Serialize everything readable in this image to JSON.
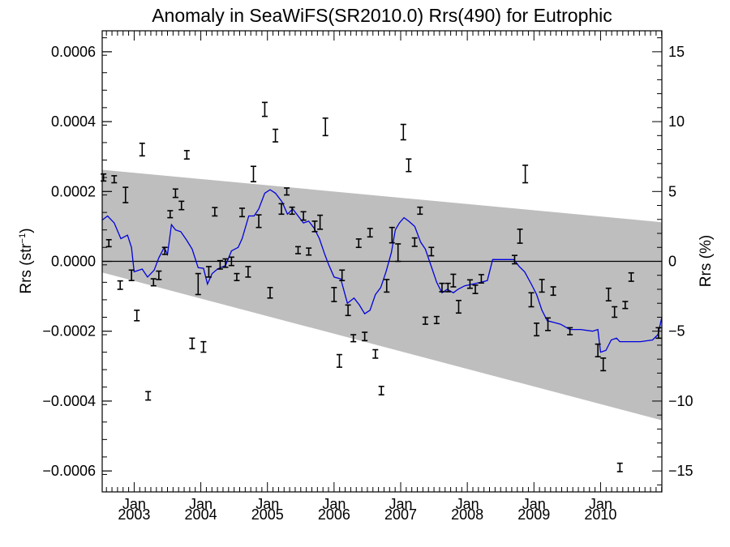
{
  "chart_data": {
    "type": "scatter",
    "title": "Anomaly in SeaWiFS(SR2010.0) Rrs(490) for Eutrophic",
    "ylabel_left": "Rrs (str",
    "ylabel_left_sup": "−1",
    "ylabel_left_close": ")",
    "ylabel_right": "Rrs (%)",
    "xlim": [
      2002.52,
      2010.92
    ],
    "ylim_left": [
      -0.00066,
      0.00066
    ],
    "ylim_right": [
      -16.5,
      16.5
    ],
    "yticks_left": [
      {
        "value": 0.0006,
        "label": "0.0006"
      },
      {
        "value": 0.0004,
        "label": "0.0004"
      },
      {
        "value": 0.0002,
        "label": "0.0002"
      },
      {
        "value": 0.0,
        "label": "0.0000"
      },
      {
        "value": -0.0002,
        "label": "−0.0002"
      },
      {
        "value": -0.0004,
        "label": "−0.0004"
      },
      {
        "value": -0.0006,
        "label": "−0.0006"
      }
    ],
    "yticks_right": [
      {
        "value": 15,
        "label": "15"
      },
      {
        "value": 10,
        "label": "10"
      },
      {
        "value": 5,
        "label": "5"
      },
      {
        "value": 0,
        "label": "0"
      },
      {
        "value": -5,
        "label": "−5"
      },
      {
        "value": -10,
        "label": "−10"
      },
      {
        "value": -15,
        "label": "−15"
      }
    ],
    "xticks": [
      {
        "value": 2003.0,
        "month": "Jan",
        "year": "2003"
      },
      {
        "value": 2004.0,
        "month": "Jan",
        "year": "2004"
      },
      {
        "value": 2005.0,
        "month": "Jan",
        "year": "2005"
      },
      {
        "value": 2006.0,
        "month": "Jan",
        "year": "2006"
      },
      {
        "value": 2007.0,
        "month": "Jan",
        "year": "2007"
      },
      {
        "value": 2008.0,
        "month": "Jan",
        "year": "2008"
      },
      {
        "value": 2009.0,
        "month": "Jan",
        "year": "2009"
      },
      {
        "value": 2010.0,
        "month": "Jan",
        "year": "2010"
      }
    ],
    "zero_line": 0,
    "uncertainty_band": {
      "color": "#bebebe",
      "upper": [
        [
          2002.52,
          0.000262
        ],
        [
          2010.92,
          0.000112
        ]
      ],
      "lower": [
        [
          2002.52,
          -3.2e-05
        ],
        [
          2010.92,
          -0.000455
        ]
      ]
    },
    "series": [
      {
        "type": "errorbar",
        "color": "#000000",
        "points": [
          {
            "x": 2002.54,
            "y": 0.00024,
            "err": 1e-05
          },
          {
            "x": 2002.62,
            "y": 5.2e-05,
            "err": 1e-05
          },
          {
            "x": 2002.7,
            "y": 0.000235,
            "err": 1e-05
          },
          {
            "x": 2002.79,
            "y": -6.8e-05,
            "err": 1.2e-05
          },
          {
            "x": 2002.87,
            "y": 0.00019,
            "err": 2.2e-05
          },
          {
            "x": 2002.96,
            "y": -4e-05,
            "err": 1.5e-05
          },
          {
            "x": 2003.04,
            "y": -0.000155,
            "err": 1.5e-05
          },
          {
            "x": 2003.12,
            "y": 0.00032,
            "err": 1.8e-05
          },
          {
            "x": 2003.21,
            "y": -0.000385,
            "err": 1.2e-05
          },
          {
            "x": 2003.29,
            "y": -6e-05,
            "err": 1e-05
          },
          {
            "x": 2003.37,
            "y": -4e-05,
            "err": 1.2e-05
          },
          {
            "x": 2003.46,
            "y": 3e-05,
            "err": 1e-05
          },
          {
            "x": 2003.54,
            "y": 0.000135,
            "err": 1e-05
          },
          {
            "x": 2003.62,
            "y": 0.000195,
            "err": 1.2e-05
          },
          {
            "x": 2003.71,
            "y": 0.00016,
            "err": 1.2e-05
          },
          {
            "x": 2003.79,
            "y": 0.000305,
            "err": 1.2e-05
          },
          {
            "x": 2003.87,
            "y": -0.000235,
            "err": 1.5e-05
          },
          {
            "x": 2003.96,
            "y": -6.5e-05,
            "err": 3e-05
          },
          {
            "x": 2004.04,
            "y": -0.000245,
            "err": 1.5e-05
          },
          {
            "x": 2004.12,
            "y": -3e-05,
            "err": 1.5e-05
          },
          {
            "x": 2004.21,
            "y": 0.000142,
            "err": 1.2e-05
          },
          {
            "x": 2004.29,
            "y": -1e-05,
            "err": 1.2e-05
          },
          {
            "x": 2004.37,
            "y": -5e-06,
            "err": 1.2e-05
          },
          {
            "x": 2004.46,
            "y": 0.0,
            "err": 1.2e-05
          },
          {
            "x": 2004.54,
            "y": -4.5e-05,
            "err": 1e-05
          },
          {
            "x": 2004.62,
            "y": 0.00014,
            "err": 1.2e-05
          },
          {
            "x": 2004.71,
            "y": -3e-05,
            "err": 1.5e-05
          },
          {
            "x": 2004.79,
            "y": 0.00025,
            "err": 2.2e-05
          },
          {
            "x": 2004.87,
            "y": 0.000115,
            "err": 1.8e-05
          },
          {
            "x": 2004.96,
            "y": 0.000435,
            "err": 2e-05
          },
          {
            "x": 2005.04,
            "y": -9e-05,
            "err": 1.5e-05
          },
          {
            "x": 2005.12,
            "y": 0.00036,
            "err": 1.8e-05
          },
          {
            "x": 2005.21,
            "y": 0.00015,
            "err": 1.5e-05
          },
          {
            "x": 2005.29,
            "y": 0.0002,
            "err": 1e-05
          },
          {
            "x": 2005.37,
            "y": 0.000145,
            "err": 1e-05
          },
          {
            "x": 2005.46,
            "y": 3.2e-05,
            "err": 1e-05
          },
          {
            "x": 2005.54,
            "y": 0.00013,
            "err": 1.2e-05
          },
          {
            "x": 2005.62,
            "y": 2.8e-05,
            "err": 1e-05
          },
          {
            "x": 2005.71,
            "y": 0.0001,
            "err": 1.5e-05
          },
          {
            "x": 2005.79,
            "y": 0.000112,
            "err": 2e-05
          },
          {
            "x": 2005.87,
            "y": 0.000385,
            "err": 2.5e-05
          },
          {
            "x": 2006.0,
            "y": -9.5e-05,
            "err": 2e-05
          },
          {
            "x": 2006.08,
            "y": -0.000285,
            "err": 1.8e-05
          },
          {
            "x": 2006.12,
            "y": -4e-05,
            "err": 1.5e-05
          },
          {
            "x": 2006.21,
            "y": -0.00014,
            "err": 1.5e-05
          },
          {
            "x": 2006.29,
            "y": -0.00022,
            "err": 1e-05
          },
          {
            "x": 2006.37,
            "y": 5.2e-05,
            "err": 1.2e-05
          },
          {
            "x": 2006.46,
            "y": -0.000215,
            "err": 1.2e-05
          },
          {
            "x": 2006.54,
            "y": 8.2e-05,
            "err": 1.2e-05
          },
          {
            "x": 2006.62,
            "y": -0.000265,
            "err": 1.2e-05
          },
          {
            "x": 2006.71,
            "y": -0.00037,
            "err": 1.2e-05
          },
          {
            "x": 2006.79,
            "y": -7e-05,
            "err": 1.8e-05
          },
          {
            "x": 2006.87,
            "y": 7.5e-05,
            "err": 2.2e-05
          },
          {
            "x": 2006.96,
            "y": 2.5e-05,
            "err": 2.5e-05
          },
          {
            "x": 2007.04,
            "y": 0.00037,
            "err": 2.2e-05
          },
          {
            "x": 2007.12,
            "y": 0.000275,
            "err": 1.8e-05
          },
          {
            "x": 2007.21,
            "y": 5.5e-05,
            "err": 1.2e-05
          },
          {
            "x": 2007.29,
            "y": 0.000145,
            "err": 1e-05
          },
          {
            "x": 2007.37,
            "y": -0.00017,
            "err": 1e-05
          },
          {
            "x": 2007.46,
            "y": 2.8e-05,
            "err": 1.2e-05
          },
          {
            "x": 2007.54,
            "y": -0.000168,
            "err": 1e-05
          },
          {
            "x": 2007.62,
            "y": -7.5e-05,
            "err": 1.2e-05
          },
          {
            "x": 2007.71,
            "y": -7.5e-05,
            "err": 1.2e-05
          },
          {
            "x": 2007.79,
            "y": -5.5e-05,
            "err": 1.8e-05
          },
          {
            "x": 2007.87,
            "y": -0.00013,
            "err": 1.8e-05
          },
          {
            "x": 2008.04,
            "y": -6.5e-05,
            "err": 1.2e-05
          },
          {
            "x": 2008.12,
            "y": -8e-05,
            "err": 1.2e-05
          },
          {
            "x": 2008.21,
            "y": -5e-05,
            "err": 1.2e-05
          },
          {
            "x": 2008.71,
            "y": 5e-06,
            "err": 1.2e-05
          },
          {
            "x": 2008.79,
            "y": 7.2e-05,
            "err": 2e-05
          },
          {
            "x": 2008.87,
            "y": 0.00025,
            "err": 2.5e-05
          },
          {
            "x": 2008.96,
            "y": -0.00011,
            "err": 2e-05
          },
          {
            "x": 2009.04,
            "y": -0.000195,
            "err": 1.8e-05
          },
          {
            "x": 2009.12,
            "y": -7e-05,
            "err": 1.8e-05
          },
          {
            "x": 2009.21,
            "y": -0.00018,
            "err": 1.8e-05
          },
          {
            "x": 2009.29,
            "y": -8.5e-05,
            "err": 1.2e-05
          },
          {
            "x": 2009.54,
            "y": -0.0002,
            "err": 1e-05
          },
          {
            "x": 2009.96,
            "y": -0.000255,
            "err": 1.8e-05
          },
          {
            "x": 2010.04,
            "y": -0.000295,
            "err": 1.8e-05
          },
          {
            "x": 2010.12,
            "y": -9.5e-05,
            "err": 1.8e-05
          },
          {
            "x": 2010.21,
            "y": -0.000145,
            "err": 1.5e-05
          },
          {
            "x": 2010.29,
            "y": -0.00059,
            "err": 1.2e-05
          },
          {
            "x": 2010.37,
            "y": -0.000125,
            "err": 1e-05
          },
          {
            "x": 2010.46,
            "y": -4.5e-05,
            "err": 1.2e-05
          },
          {
            "x": 2010.87,
            "y": -0.000205,
            "err": 1.5e-05
          }
        ]
      },
      {
        "type": "line",
        "color": "#0000dd",
        "points": [
          [
            2002.52,
            0.000118
          ],
          [
            2002.6,
            0.00013
          ],
          [
            2002.7,
            0.00011
          ],
          [
            2002.8,
            6.5e-05
          ],
          [
            2002.9,
            7.5e-05
          ],
          [
            2002.96,
            4e-05
          ],
          [
            2003.0,
            -3e-05
          ],
          [
            2003.12,
            -2.2e-05
          ],
          [
            2003.2,
            -4.5e-05
          ],
          [
            2003.3,
            -2.5e-05
          ],
          [
            2003.37,
            1e-05
          ],
          [
            2003.45,
            4e-05
          ],
          [
            2003.5,
            2e-05
          ],
          [
            2003.56,
            0.000105
          ],
          [
            2003.62,
            9e-05
          ],
          [
            2003.7,
            8.5e-05
          ],
          [
            2003.79,
            6e-05
          ],
          [
            2003.87,
            3.5e-05
          ],
          [
            2003.96,
            -1.8e-05
          ],
          [
            2004.04,
            -2e-05
          ],
          [
            2004.1,
            -6.5e-05
          ],
          [
            2004.17,
            -3.5e-05
          ],
          [
            2004.25,
            -2.2e-05
          ],
          [
            2004.37,
            -1.2e-05
          ],
          [
            2004.46,
            3e-05
          ],
          [
            2004.56,
            4e-05
          ],
          [
            2004.62,
            6.5e-05
          ],
          [
            2004.72,
            0.00013
          ],
          [
            2004.8,
            0.00013
          ],
          [
            2004.87,
            0.00015
          ],
          [
            2004.96,
            0.000195
          ],
          [
            2005.04,
            0.000205
          ],
          [
            2005.12,
            0.000195
          ],
          [
            2005.22,
            0.00017
          ],
          [
            2005.3,
            0.000135
          ],
          [
            2005.38,
            0.00015
          ],
          [
            2005.46,
            0.00013
          ],
          [
            2005.54,
            0.00011
          ],
          [
            2005.62,
            0.000115
          ],
          [
            2005.7,
            9.5e-05
          ],
          [
            2005.78,
            6.5e-05
          ],
          [
            2005.86,
            2e-05
          ],
          [
            2005.92,
            -1e-05
          ],
          [
            2006.0,
            -4.5e-05
          ],
          [
            2006.1,
            -5e-05
          ],
          [
            2006.2,
            -0.00012
          ],
          [
            2006.3,
            -0.000105
          ],
          [
            2006.38,
            -0.000125
          ],
          [
            2006.46,
            -0.00015
          ],
          [
            2006.54,
            -0.00014
          ],
          [
            2006.62,
            -9.5e-05
          ],
          [
            2006.7,
            -7.5e-05
          ],
          [
            2006.78,
            -3e-05
          ],
          [
            2006.86,
            2.5e-05
          ],
          [
            2006.92,
            9e-05
          ],
          [
            2006.98,
            0.00011
          ],
          [
            2007.05,
            0.000125
          ],
          [
            2007.12,
            0.000115
          ],
          [
            2007.21,
            0.0001
          ],
          [
            2007.3,
            5.5e-05
          ],
          [
            2007.37,
            3.5e-05
          ],
          [
            2007.46,
            -1.5e-05
          ],
          [
            2007.54,
            -6e-05
          ],
          [
            2007.62,
            -9e-05
          ],
          [
            2007.7,
            -8e-05
          ],
          [
            2007.79,
            -9e-05
          ],
          [
            2007.86,
            -8e-05
          ],
          [
            2007.96,
            -7e-05
          ],
          [
            2008.2,
            -6e-05
          ],
          [
            2008.3,
            -5.5e-05
          ],
          [
            2008.38,
            5e-06
          ],
          [
            2008.5,
            5e-06
          ],
          [
            2008.7,
            5e-06
          ],
          [
            2008.78,
            -1.5e-05
          ],
          [
            2008.86,
            -3e-05
          ],
          [
            2008.96,
            -6.5e-05
          ],
          [
            2009.04,
            -9.5e-05
          ],
          [
            2009.12,
            -0.00014
          ],
          [
            2009.2,
            -0.00017
          ],
          [
            2009.3,
            -0.000175
          ],
          [
            2009.4,
            -0.00018
          ],
          [
            2009.54,
            -0.000195
          ],
          [
            2009.7,
            -0.000195
          ],
          [
            2009.88,
            -0.0002
          ],
          [
            2009.96,
            -0.000195
          ],
          [
            2010.0,
            -0.00026
          ],
          [
            2010.08,
            -0.000255
          ],
          [
            2010.16,
            -0.000225
          ],
          [
            2010.24,
            -0.00022
          ],
          [
            2010.29,
            -0.00023
          ],
          [
            2010.4,
            -0.00023
          ],
          [
            2010.6,
            -0.00023
          ],
          [
            2010.78,
            -0.000225
          ],
          [
            2010.86,
            -0.00021
          ],
          [
            2010.92,
            -0.00016
          ]
        ]
      }
    ]
  }
}
